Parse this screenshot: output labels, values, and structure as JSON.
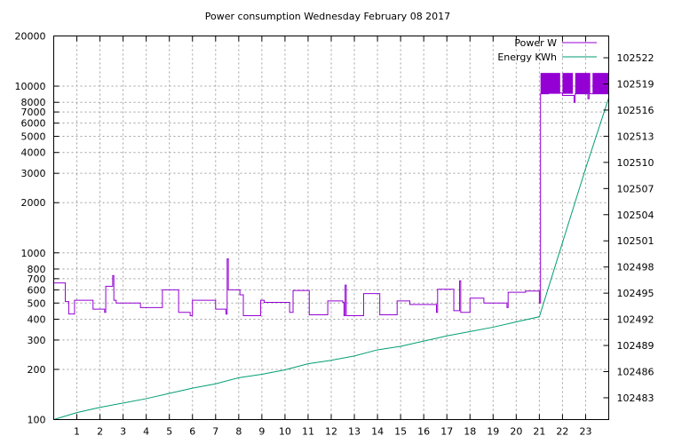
{
  "chart_data": {
    "type": "line",
    "title": "Power consumption Wednesday February 08 2017",
    "grid": true,
    "legend_position": "top-right",
    "x_axis": {
      "range": [
        0,
        24
      ],
      "ticks": [
        1,
        2,
        3,
        4,
        5,
        6,
        7,
        8,
        9,
        10,
        11,
        12,
        13,
        14,
        15,
        16,
        17,
        18,
        19,
        20,
        21,
        22,
        23
      ]
    },
    "y_axis_left": {
      "scale": "log",
      "range": [
        100,
        20000
      ],
      "ticks": [
        100,
        200,
        300,
        400,
        500,
        600,
        700,
        800,
        1000,
        2000,
        3000,
        4000,
        5000,
        6000,
        7000,
        8000,
        10000,
        20000
      ]
    },
    "y_axis_right": {
      "scale": "linear",
      "range": [
        102480.5,
        102524.5
      ],
      "ticks": [
        102483,
        102486,
        102489,
        102492,
        102495,
        102498,
        102501,
        102504,
        102507,
        102510,
        102513,
        102516,
        102519,
        102522
      ]
    },
    "series": [
      {
        "name": "Power W",
        "axis": "left",
        "color": "#9400d3",
        "style": "step",
        "points": [
          [
            0.0,
            660
          ],
          [
            0.5,
            660
          ],
          [
            0.5,
            510
          ],
          [
            0.65,
            510
          ],
          [
            0.65,
            430
          ],
          [
            0.9,
            430
          ],
          [
            0.9,
            520
          ],
          [
            1.7,
            520
          ],
          [
            1.7,
            460
          ],
          [
            2.2,
            460
          ],
          [
            2.2,
            440
          ],
          [
            2.25,
            440
          ],
          [
            2.25,
            630
          ],
          [
            2.55,
            630
          ],
          [
            2.55,
            730
          ],
          [
            2.6,
            730
          ],
          [
            2.6,
            520
          ],
          [
            2.7,
            520
          ],
          [
            2.7,
            500
          ],
          [
            3.75,
            500
          ],
          [
            3.75,
            470
          ],
          [
            4.7,
            470
          ],
          [
            4.7,
            600
          ],
          [
            5.4,
            600
          ],
          [
            5.4,
            440
          ],
          [
            5.9,
            440
          ],
          [
            5.9,
            420
          ],
          [
            6.0,
            420
          ],
          [
            6.0,
            520
          ],
          [
            7.0,
            520
          ],
          [
            7.0,
            460
          ],
          [
            7.45,
            460
          ],
          [
            7.45,
            430
          ],
          [
            7.5,
            430
          ],
          [
            7.5,
            920
          ],
          [
            7.55,
            920
          ],
          [
            7.55,
            600
          ],
          [
            8.05,
            600
          ],
          [
            8.05,
            560
          ],
          [
            8.2,
            560
          ],
          [
            8.2,
            420
          ],
          [
            8.95,
            420
          ],
          [
            8.95,
            520
          ],
          [
            9.1,
            520
          ],
          [
            9.1,
            505
          ],
          [
            10.2,
            505
          ],
          [
            10.2,
            440
          ],
          [
            10.35,
            440
          ],
          [
            10.35,
            595
          ],
          [
            11.05,
            595
          ],
          [
            11.05,
            425
          ],
          [
            11.85,
            425
          ],
          [
            11.85,
            515
          ],
          [
            12.5,
            515
          ],
          [
            12.5,
            505
          ],
          [
            12.55,
            505
          ],
          [
            12.55,
            420
          ],
          [
            12.6,
            420
          ],
          [
            12.6,
            640
          ],
          [
            12.65,
            640
          ],
          [
            12.65,
            420
          ],
          [
            13.4,
            420
          ],
          [
            13.4,
            570
          ],
          [
            14.1,
            570
          ],
          [
            14.1,
            425
          ],
          [
            14.85,
            425
          ],
          [
            14.85,
            515
          ],
          [
            15.4,
            515
          ],
          [
            15.4,
            490
          ],
          [
            16.55,
            490
          ],
          [
            16.55,
            440
          ],
          [
            16.6,
            440
          ],
          [
            16.6,
            605
          ],
          [
            17.3,
            605
          ],
          [
            17.3,
            450
          ],
          [
            17.55,
            450
          ],
          [
            17.55,
            680
          ],
          [
            17.6,
            680
          ],
          [
            17.6,
            440
          ],
          [
            18.0,
            440
          ],
          [
            18.0,
            535
          ],
          [
            18.6,
            535
          ],
          [
            18.6,
            500
          ],
          [
            19.6,
            500
          ],
          [
            19.6,
            470
          ],
          [
            19.65,
            470
          ],
          [
            19.65,
            580
          ],
          [
            20.4,
            580
          ],
          [
            20.4,
            590
          ],
          [
            21.0,
            590
          ],
          [
            21.0,
            500
          ],
          [
            21.05,
            500
          ],
          [
            21.05,
            9000
          ],
          [
            21.4,
            9000
          ],
          [
            21.4,
            9100
          ],
          [
            22.0,
            9100
          ],
          [
            22.0,
            8800
          ],
          [
            22.5,
            8800
          ],
          [
            22.5,
            8000
          ],
          [
            22.55,
            8000
          ],
          [
            22.55,
            9000
          ],
          [
            23.1,
            9000
          ],
          [
            23.1,
            8400
          ],
          [
            23.15,
            8400
          ],
          [
            23.15,
            9000
          ],
          [
            24.0,
            9000
          ]
        ],
        "burst": {
          "x_ranges": [
            [
              21.05,
              21.9
            ],
            [
              22.0,
              22.45
            ],
            [
              22.55,
              23.2
            ],
            [
              23.3,
              24.0
            ]
          ],
          "low": 9000,
          "high": 12000
        }
      },
      {
        "name": "Energy KWh",
        "axis": "right",
        "color": "#009e73",
        "style": "line",
        "points": [
          [
            0.0,
            102480.5
          ],
          [
            1.0,
            102481.3
          ],
          [
            2.0,
            102481.9
          ],
          [
            3.0,
            102482.4
          ],
          [
            4.0,
            102482.9
          ],
          [
            5.0,
            102483.5
          ],
          [
            6.0,
            102484.1
          ],
          [
            7.0,
            102484.6
          ],
          [
            8.0,
            102485.3
          ],
          [
            9.0,
            102485.7
          ],
          [
            10.0,
            102486.2
          ],
          [
            11.0,
            102486.9
          ],
          [
            12.0,
            102487.3
          ],
          [
            13.0,
            102487.8
          ],
          [
            14.0,
            102488.5
          ],
          [
            15.0,
            102488.9
          ],
          [
            16.0,
            102489.5
          ],
          [
            17.0,
            102490.1
          ],
          [
            18.0,
            102490.6
          ],
          [
            19.0,
            102491.1
          ],
          [
            20.0,
            102491.7
          ],
          [
            21.0,
            102492.3
          ],
          [
            22.0,
            102500.8
          ],
          [
            23.0,
            102509.3
          ],
          [
            24.0,
            102517.4
          ]
        ]
      }
    ]
  }
}
